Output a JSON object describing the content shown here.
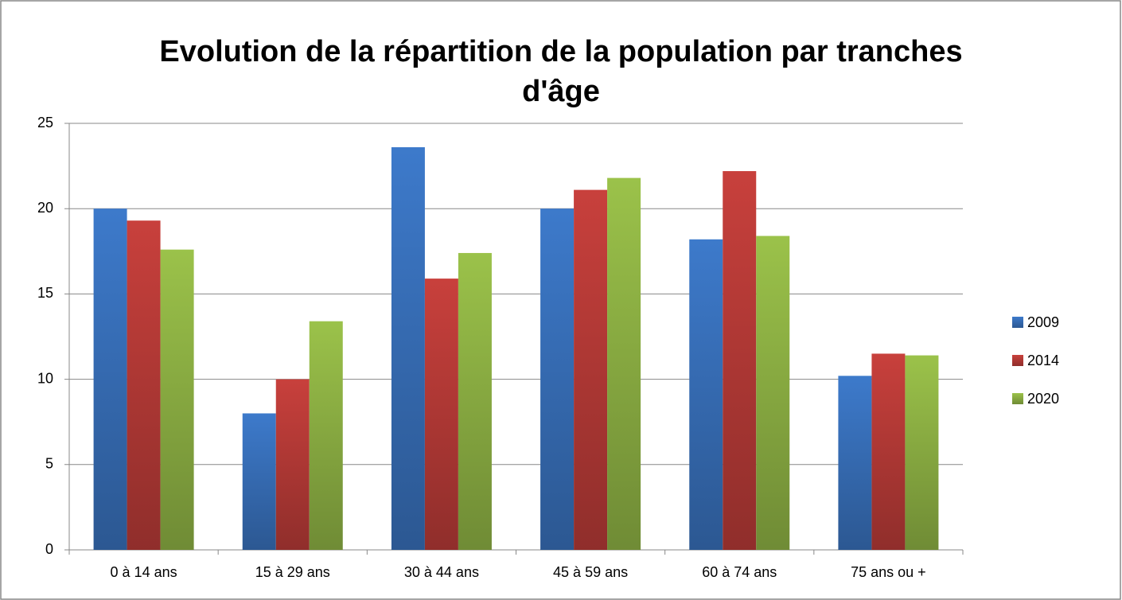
{
  "chart_data": {
    "type": "bar",
    "title": "Evolution de la répartition de la population par tranches d'âge",
    "categories": [
      "0 à 14 ans",
      "15 à 29 ans",
      "30 à 44 ans",
      "45 à 59 ans",
      "60 à 74 ans",
      "75 ans ou +"
    ],
    "series": [
      {
        "name": "2009",
        "color": "#3d7acb",
        "values": [
          20.0,
          8.0,
          23.6,
          20.0,
          18.2,
          10.2
        ]
      },
      {
        "name": "2014",
        "color": "#c8403c",
        "values": [
          19.3,
          10.0,
          15.9,
          21.1,
          22.2,
          11.5
        ]
      },
      {
        "name": "2020",
        "color": "#9bc24a",
        "values": [
          17.6,
          13.4,
          17.4,
          21.8,
          18.4,
          11.4
        ]
      }
    ],
    "ylim": [
      0,
      25
    ],
    "yticks": [
      0,
      5,
      10,
      15,
      20,
      25
    ],
    "grid": true,
    "legend": "right"
  }
}
